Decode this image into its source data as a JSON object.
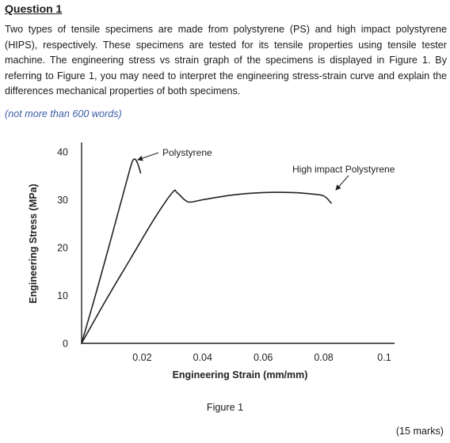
{
  "question": {
    "heading": "Question 1",
    "body": "Two types of tensile specimens are made from polystyrene (PS) and high impact polystyrene (HIPS), respectively. These specimens are tested for its tensile properties using tensile tester machine. The engineering stress vs strain graph of the specimens is displayed in Figure 1. By referring to Figure 1, you may need to interpret the engineering stress-strain curve and explain the differences mechanical properties of both specimens.",
    "word_limit_note": "(not more than 600 words)"
  },
  "figure": {
    "caption": "Figure 1"
  },
  "marks": "(15 marks)",
  "chart_data": {
    "type": "line",
    "xlabel": "Engineering Strain (mm/mm)",
    "ylabel": "Engineering Stress (MPa)",
    "xlim": [
      0,
      0.1
    ],
    "ylim": [
      0,
      40
    ],
    "x_ticks": [
      0.02,
      0.04,
      0.06,
      0.08,
      0.1
    ],
    "x_tick_labels": [
      "0.02",
      "0.04",
      "0.06",
      "0.08",
      "0.1"
    ],
    "y_ticks": [
      0,
      10,
      20,
      30,
      40
    ],
    "y_tick_labels": [
      "0",
      "10",
      "20",
      "30",
      "40"
    ],
    "grid": false,
    "series": [
      {
        "name": "Polystyrene",
        "color": "#222222",
        "x": [
          0,
          0.005,
          0.01,
          0.0145,
          0.0165,
          0.0175,
          0.0185,
          0.0195
        ],
        "y": [
          0,
          11.0,
          22.5,
          33.0,
          37.5,
          38.5,
          37.6,
          35.6
        ]
      },
      {
        "name": "High impact Polystyrene",
        "color": "#222222",
        "x": [
          0,
          0.008,
          0.016,
          0.024,
          0.03,
          0.0315,
          0.034,
          0.036,
          0.04,
          0.05,
          0.06,
          0.07,
          0.076,
          0.08,
          0.0825
        ],
        "y": [
          0,
          9.0,
          17.5,
          26.0,
          31.5,
          31.5,
          30.0,
          29.5,
          30.0,
          31.0,
          31.5,
          31.5,
          31.2,
          30.8,
          29.3
        ]
      }
    ],
    "annotations": [
      {
        "text": "Polystyrene",
        "target_series": 0
      },
      {
        "text": "High impact Polystyrene",
        "target_series": 1
      }
    ]
  }
}
